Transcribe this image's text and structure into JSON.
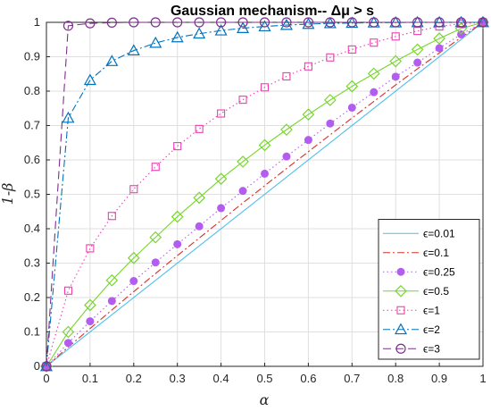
{
  "chart_data": {
    "type": "line",
    "title": "Gaussian mechanism-- Δμ > s",
    "xlabel": "α",
    "ylabel": "1-β",
    "xlim": [
      0,
      1
    ],
    "ylim": [
      0,
      1
    ],
    "xticks": [
      "0",
      "0.1",
      "0.2",
      "0.3",
      "0.4",
      "0.5",
      "0.6",
      "0.7",
      "0.8",
      "0.9",
      "1"
    ],
    "yticks": [
      "0",
      "0.1",
      "0.2",
      "0.3",
      "0.4",
      "0.5",
      "0.6",
      "0.7",
      "0.8",
      "0.9",
      "1"
    ],
    "grid": true,
    "legend_position": "bottom-right",
    "series": [
      {
        "name": "ϵ=0.01",
        "color": "#4DBEEE",
        "line": "solid",
        "marker": "none",
        "x": [
          0,
          1
        ],
        "y": [
          0,
          1
        ]
      },
      {
        "name": "ϵ=0.1",
        "color": "#D9302A",
        "line": "dashdot",
        "marker": "none",
        "x": [
          0,
          0.05,
          0.1,
          0.15,
          0.2,
          0.25,
          0.3,
          0.35,
          0.4,
          0.45,
          0.5,
          0.55,
          0.6,
          0.65,
          0.7,
          0.75,
          0.8,
          0.85,
          0.9,
          0.95,
          1
        ],
        "y": [
          0,
          0.056,
          0.11,
          0.164,
          0.217,
          0.27,
          0.322,
          0.373,
          0.424,
          0.475,
          0.525,
          0.575,
          0.624,
          0.673,
          0.722,
          0.77,
          0.818,
          0.865,
          0.911,
          0.956,
          1
        ]
      },
      {
        "name": "ϵ=0.25",
        "color": "#B35DF0",
        "line": "dotted",
        "marker": "filled-circle",
        "x": [
          0,
          0.05,
          0.1,
          0.15,
          0.2,
          0.25,
          0.3,
          0.35,
          0.4,
          0.45,
          0.5,
          0.55,
          0.6,
          0.65,
          0.7,
          0.75,
          0.8,
          0.85,
          0.9,
          0.95,
          1
        ],
        "y": [
          0,
          0.068,
          0.131,
          0.19,
          0.248,
          0.302,
          0.355,
          0.407,
          0.46,
          0.51,
          0.56,
          0.61,
          0.658,
          0.706,
          0.752,
          0.797,
          0.842,
          0.883,
          0.925,
          0.965,
          1
        ]
      },
      {
        "name": "ϵ=0.5",
        "color": "#77D62C",
        "line": "solid",
        "marker": "diamond",
        "x": [
          0,
          0.05,
          0.1,
          0.15,
          0.2,
          0.25,
          0.3,
          0.35,
          0.4,
          0.45,
          0.5,
          0.55,
          0.6,
          0.65,
          0.7,
          0.75,
          0.8,
          0.85,
          0.9,
          0.95,
          1
        ],
        "y": [
          0,
          0.1,
          0.178,
          0.25,
          0.315,
          0.375,
          0.435,
          0.49,
          0.545,
          0.595,
          0.643,
          0.688,
          0.732,
          0.774,
          0.814,
          0.851,
          0.887,
          0.921,
          0.953,
          0.982,
          1
        ]
      },
      {
        "name": "ϵ=1",
        "color": "#EE3FB0",
        "line": "dotted",
        "marker": "square",
        "x": [
          0,
          0.05,
          0.1,
          0.15,
          0.2,
          0.25,
          0.3,
          0.35,
          0.4,
          0.45,
          0.5,
          0.55,
          0.6,
          0.65,
          0.7,
          0.75,
          0.8,
          0.85,
          0.9,
          0.95,
          1
        ],
        "y": [
          0,
          0.22,
          0.343,
          0.437,
          0.515,
          0.58,
          0.64,
          0.69,
          0.735,
          0.775,
          0.811,
          0.843,
          0.872,
          0.898,
          0.921,
          0.941,
          0.959,
          0.975,
          0.988,
          0.996,
          1
        ]
      },
      {
        "name": "ϵ=2",
        "color": "#0072BD",
        "line": "dashdot",
        "marker": "triangle",
        "x": [
          0,
          0.05,
          0.1,
          0.15,
          0.2,
          0.25,
          0.3,
          0.35,
          0.4,
          0.45,
          0.5,
          0.55,
          0.6,
          0.65,
          0.7,
          0.75,
          0.8,
          0.85,
          0.9,
          0.95,
          1
        ],
        "y": [
          0,
          0.722,
          0.832,
          0.887,
          0.918,
          0.94,
          0.956,
          0.967,
          0.976,
          0.983,
          0.988,
          0.992,
          0.995,
          0.997,
          0.998,
          0.999,
          0.9995,
          1,
          1,
          1,
          1
        ]
      },
      {
        "name": "ϵ=3",
        "color": "#7E2F8E",
        "line": "dashed",
        "marker": "circle",
        "x": [
          0,
          0.05,
          0.1,
          0.15,
          0.2,
          0.25,
          0.3,
          0.35,
          0.4,
          0.45,
          0.5,
          0.55,
          0.6,
          0.65,
          0.7,
          0.75,
          0.8,
          0.85,
          0.9,
          0.95,
          1
        ],
        "y": [
          0,
          0.99,
          0.997,
          0.999,
          1,
          1,
          1,
          1,
          1,
          1,
          1,
          1,
          1,
          1,
          1,
          1,
          1,
          1,
          1,
          1,
          1
        ]
      }
    ]
  }
}
